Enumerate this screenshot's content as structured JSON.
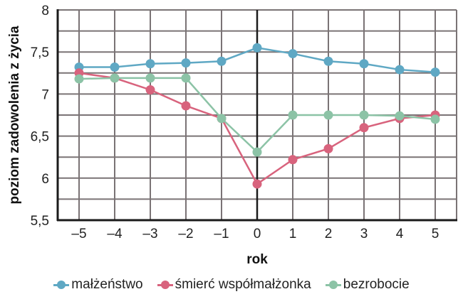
{
  "chart_data": {
    "type": "line",
    "title": "",
    "xlabel": "rok",
    "ylabel": "poziom zadowolenia z życia",
    "x": [
      -5,
      -4,
      -3,
      -2,
      -1,
      0,
      1,
      2,
      3,
      4,
      5
    ],
    "x_tick_labels": [
      "–5",
      "–4",
      "–3",
      "–2",
      "–1",
      "0",
      "1",
      "2",
      "3",
      "4",
      "5"
    ],
    "y_tick_labels": [
      "5,5",
      "6",
      "6,5",
      "7",
      "7,5",
      "8"
    ],
    "y_ticks": [
      5.5,
      6,
      6.5,
      7,
      7.5,
      8
    ],
    "ylim": [
      5.5,
      8
    ],
    "grid": true,
    "grid_minor_step": 0.25,
    "legend_position": "bottom",
    "series": [
      {
        "name": "małżeństwo",
        "color": "#5fa8c4",
        "values": [
          7.32,
          7.32,
          7.36,
          7.37,
          7.39,
          7.55,
          7.48,
          7.39,
          7.36,
          7.29,
          7.26
        ]
      },
      {
        "name": "śmierć współmałżonka",
        "color": "#d8637d",
        "values": [
          7.25,
          7.19,
          7.05,
          6.86,
          6.71,
          5.93,
          6.22,
          6.35,
          6.6,
          6.71,
          6.75
        ]
      },
      {
        "name": "bezrobocie",
        "color": "#8cc3a6",
        "values": [
          7.18,
          7.19,
          7.19,
          7.19,
          6.71,
          6.31,
          6.75,
          6.75,
          6.75,
          6.74,
          6.7
        ]
      }
    ]
  },
  "colors": {
    "grid": "#7a7375",
    "axis": "#1a1a1a"
  }
}
